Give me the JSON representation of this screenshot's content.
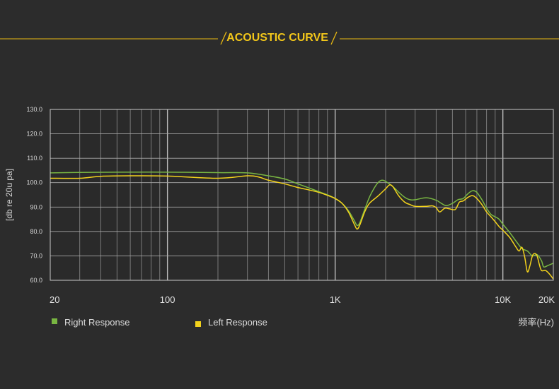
{
  "chart_data": {
    "type": "line",
    "title": "ACOUSTIC CURVE",
    "xlabel": "频率(Hz)",
    "ylabel": "[db re 20u pa]",
    "x_scale": "log",
    "xlim": [
      20,
      20000
    ],
    "ylim": [
      60,
      130
    ],
    "x_ticks": [
      {
        "value": 20,
        "label": "20"
      },
      {
        "value": 100,
        "label": "100"
      },
      {
        "value": 1000,
        "label": "1K"
      },
      {
        "value": 10000,
        "label": "10K"
      },
      {
        "value": 20000,
        "label": "20K"
      }
    ],
    "y_ticks": [
      {
        "value": 130,
        "label": "130.0"
      },
      {
        "value": 120,
        "label": "120.0"
      },
      {
        "value": 110,
        "label": "110.0"
      },
      {
        "value": 100,
        "label": "100.0"
      },
      {
        "value": 90,
        "label": "90.0"
      },
      {
        "value": 80,
        "label": "80.0"
      },
      {
        "value": 70,
        "label": "70.0"
      },
      {
        "value": 60,
        "label": "60.0"
      }
    ],
    "grid": true,
    "legend_position": "bottom-left",
    "series": [
      {
        "name": "Right Response",
        "color": "#79b642",
        "points": [
          [
            20,
            104.0
          ],
          [
            30,
            104.2
          ],
          [
            50,
            104.3
          ],
          [
            100,
            104.3
          ],
          [
            200,
            104.1
          ],
          [
            300,
            104.0
          ],
          [
            400,
            102.8
          ],
          [
            500,
            101.5
          ],
          [
            600,
            99.5
          ],
          [
            700,
            97.8
          ],
          [
            800,
            96.3
          ],
          [
            900,
            95.0
          ],
          [
            1000,
            93.5
          ],
          [
            1100,
            91.5
          ],
          [
            1200,
            88.5
          ],
          [
            1300,
            84.5
          ],
          [
            1350,
            82.5
          ],
          [
            1400,
            83.5
          ],
          [
            1500,
            89.0
          ],
          [
            1600,
            94.0
          ],
          [
            1700,
            97.5
          ],
          [
            1800,
            100.0
          ],
          [
            1900,
            101.0
          ],
          [
            2000,
            100.5
          ],
          [
            2200,
            98.5
          ],
          [
            2400,
            96.0
          ],
          [
            2600,
            94.0
          ],
          [
            2800,
            93.0
          ],
          [
            3000,
            93.0
          ],
          [
            3500,
            93.8
          ],
          [
            4000,
            92.8
          ],
          [
            4300,
            91.5
          ],
          [
            4600,
            90.6
          ],
          [
            5000,
            91.5
          ],
          [
            5400,
            93.0
          ],
          [
            5800,
            93.5
          ],
          [
            6200,
            95.5
          ],
          [
            6600,
            96.7
          ],
          [
            7000,
            96.0
          ],
          [
            7500,
            93.0
          ],
          [
            8000,
            89.5
          ],
          [
            8500,
            87.0
          ],
          [
            9000,
            86.0
          ],
          [
            9500,
            85.0
          ],
          [
            10000,
            83.0
          ],
          [
            11000,
            79.5
          ],
          [
            12000,
            76.0
          ],
          [
            13000,
            73.0
          ],
          [
            14000,
            72.0
          ],
          [
            15000,
            70.0
          ],
          [
            16000,
            70.5
          ],
          [
            17000,
            68.0
          ],
          [
            17500,
            65.5
          ],
          [
            18500,
            66.0
          ],
          [
            20000,
            67.0
          ]
        ]
      },
      {
        "name": "Left Response",
        "color": "#f3d21c",
        "points": [
          [
            20,
            101.8
          ],
          [
            30,
            101.8
          ],
          [
            40,
            102.6
          ],
          [
            60,
            102.8
          ],
          [
            100,
            102.7
          ],
          [
            200,
            101.8
          ],
          [
            300,
            102.8
          ],
          [
            350,
            102.3
          ],
          [
            400,
            101.0
          ],
          [
            500,
            99.5
          ],
          [
            600,
            98.0
          ],
          [
            700,
            97.0
          ],
          [
            800,
            96.0
          ],
          [
            900,
            94.8
          ],
          [
            1000,
            93.5
          ],
          [
            1100,
            91.5
          ],
          [
            1200,
            88.0
          ],
          [
            1300,
            83.0
          ],
          [
            1350,
            81.0
          ],
          [
            1400,
            82.5
          ],
          [
            1500,
            88.0
          ],
          [
            1600,
            91.5
          ],
          [
            1800,
            94.5
          ],
          [
            2000,
            97.5
          ],
          [
            2100,
            99.0
          ],
          [
            2200,
            98.5
          ],
          [
            2400,
            94.5
          ],
          [
            2600,
            92.0
          ],
          [
            2800,
            91.0
          ],
          [
            3000,
            90.3
          ],
          [
            3500,
            90.3
          ],
          [
            3800,
            90.5
          ],
          [
            4000,
            89.8
          ],
          [
            4200,
            88.0
          ],
          [
            4500,
            89.5
          ],
          [
            4800,
            89.3
          ],
          [
            5200,
            89.0
          ],
          [
            5500,
            92.0
          ],
          [
            5800,
            92.5
          ],
          [
            6200,
            94.0
          ],
          [
            6600,
            94.7
          ],
          [
            7000,
            93.5
          ],
          [
            7500,
            91.0
          ],
          [
            8000,
            88.0
          ],
          [
            8500,
            86.0
          ],
          [
            9000,
            84.0
          ],
          [
            9500,
            82.0
          ],
          [
            10000,
            80.5
          ],
          [
            11000,
            77.5
          ],
          [
            12000,
            73.5
          ],
          [
            12500,
            72.0
          ],
          [
            13000,
            73.5
          ],
          [
            13500,
            69.5
          ],
          [
            14000,
            63.5
          ],
          [
            14500,
            66.0
          ],
          [
            15000,
            70.0
          ],
          [
            15500,
            71.0
          ],
          [
            16000,
            70.0
          ],
          [
            16500,
            66.5
          ],
          [
            17000,
            64.0
          ],
          [
            18000,
            64.0
          ],
          [
            19000,
            62.5
          ],
          [
            20000,
            60.5
          ]
        ]
      }
    ]
  }
}
